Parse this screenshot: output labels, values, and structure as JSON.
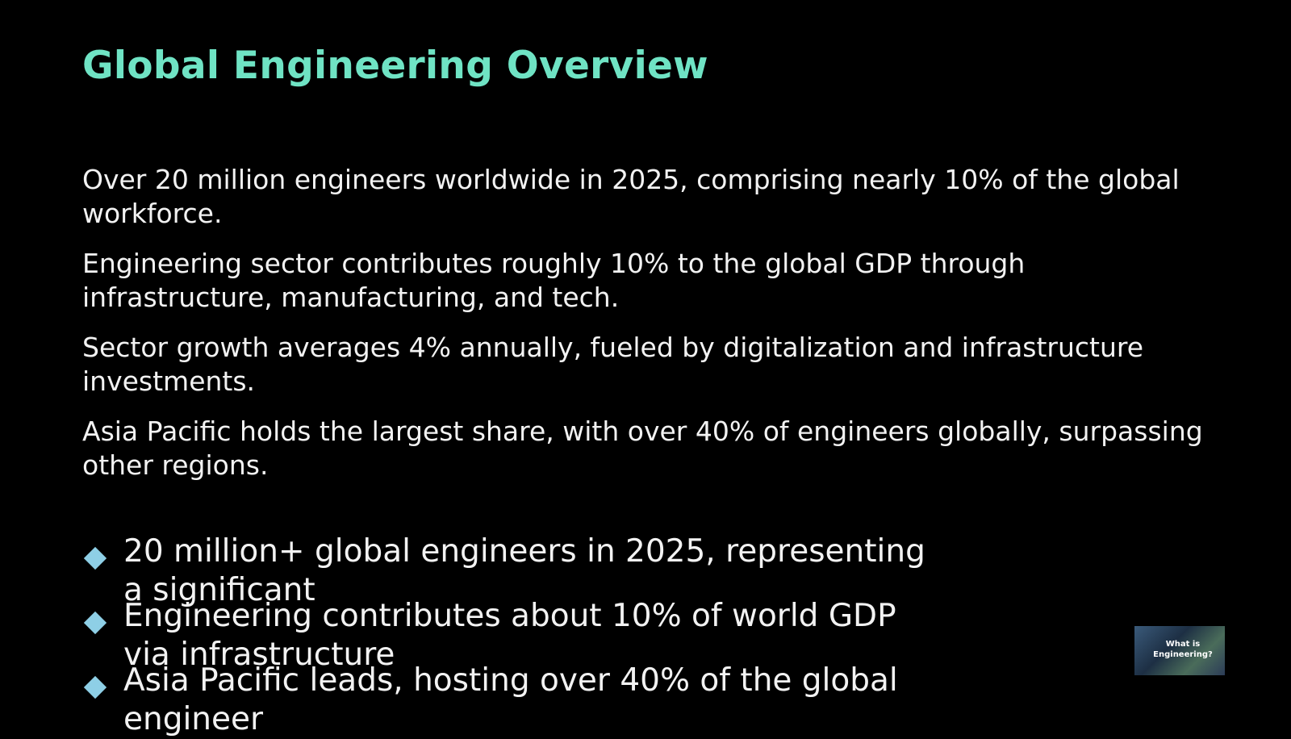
{
  "slide": {
    "title": "Global Engineering Overview",
    "paragraphs": [
      "Over 20 million engineers worldwide in 2025, comprising nearly 10% of the global workforce.",
      "Engineering sector contributes roughly 10% to the global GDP through infrastructure, manufacturing, and tech.",
      "Sector growth averages 4% annually, fueled by digitalization and infrastructure investments.",
      "Asia Pacific holds the largest share, with over 40% of engineers globally, surpassing other regions."
    ],
    "bullets": [
      "20 million+ global engineers in 2025, representing a significant",
      "Engineering contributes about 10% of world GDP via infrastructure",
      "Asia Pacific leads, hosting over 40% of the global engineer"
    ],
    "thumbnail": {
      "label": "What is Engineering?"
    }
  }
}
